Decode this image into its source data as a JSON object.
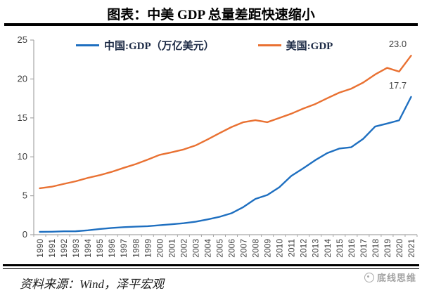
{
  "title": "图表：中美 GDP 总量差距快速缩小",
  "footer": {
    "source": "资料来源：Wind，泽平宏观",
    "logo_text": "底线思维"
  },
  "chart_data": {
    "type": "line",
    "title": "图表：中美 GDP 总量差距快速缩小",
    "x": [
      1990,
      1991,
      1992,
      1993,
      1994,
      1995,
      1996,
      1997,
      1998,
      1999,
      2000,
      2001,
      2002,
      2003,
      2004,
      2005,
      2006,
      2007,
      2008,
      2009,
      2010,
      2011,
      2012,
      2013,
      2014,
      2015,
      2016,
      2017,
      2018,
      2019,
      2020,
      2021
    ],
    "series": [
      {
        "name": "中国:GDP（万亿美元）",
        "color": "#1E6FC0",
        "end_label": "17.7",
        "values": [
          0.36,
          0.38,
          0.43,
          0.44,
          0.56,
          0.73,
          0.86,
          0.96,
          1.03,
          1.09,
          1.21,
          1.34,
          1.47,
          1.66,
          1.96,
          2.29,
          2.75,
          3.55,
          4.59,
          5.1,
          6.09,
          7.55,
          8.53,
          9.57,
          10.48,
          11.06,
          11.23,
          12.31,
          13.89,
          14.28,
          14.69,
          17.7
        ]
      },
      {
        "name": "美国:GDP",
        "color": "#E97132",
        "end_label": "23.0",
        "values": [
          5.96,
          6.16,
          6.52,
          6.86,
          7.29,
          7.64,
          8.07,
          8.58,
          9.06,
          9.63,
          10.25,
          10.58,
          10.94,
          11.46,
          12.22,
          13.04,
          13.82,
          14.45,
          14.71,
          14.45,
          14.99,
          15.54,
          16.2,
          16.78,
          17.53,
          18.24,
          18.75,
          19.54,
          20.58,
          21.43,
          20.95,
          23.0
        ]
      }
    ],
    "ylim": [
      0,
      25
    ],
    "yticks": [
      0,
      5,
      10,
      15,
      20,
      25
    ],
    "xlabel": "",
    "ylabel": "",
    "grid": false,
    "legend_position": "top",
    "axis_color": "#A6A6A6",
    "tick_label_color": "#404040"
  }
}
